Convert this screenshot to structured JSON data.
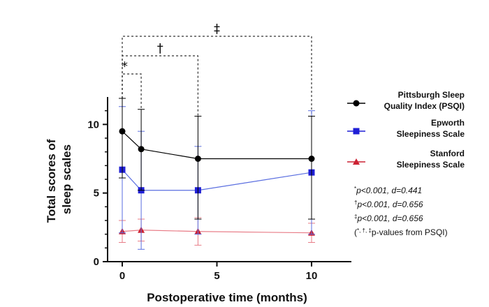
{
  "chart_data": {
    "type": "line",
    "xlabel": "Postoperative time (months)",
    "ylabel_lines": [
      "Total scores of",
      "sleep scales"
    ],
    "x": [
      0,
      1,
      4,
      10
    ],
    "xlim": [
      -0.8,
      11.8
    ],
    "ylim": [
      0,
      12
    ],
    "x_ticks": [
      0,
      5,
      10
    ],
    "y_ticks": [
      0,
      5,
      10
    ],
    "grid": false,
    "legend_position": "right",
    "series": [
      {
        "name_lines": [
          "Pittsburgh Sleep",
          "Quality Index (PSQI)"
        ],
        "color": "#000000",
        "line_color": "#000000",
        "marker": "circle",
        "values": [
          9.5,
          8.2,
          7.5,
          7.5
        ],
        "err_low": [
          6.1,
          5.2,
          3.1,
          3.1
        ],
        "err_high": [
          11.9,
          11.1,
          10.6,
          10.6
        ]
      },
      {
        "name_lines": [
          "Epworth",
          "Sleepiness Scale"
        ],
        "color": "#1f1fd6",
        "line_color": "#5a6ee0",
        "marker": "square",
        "values": [
          6.7,
          5.2,
          5.2,
          6.5
        ],
        "err_low": [
          2.1,
          0.9,
          2.0,
          2.0
        ],
        "err_high": [
          11.3,
          9.5,
          8.4,
          11.0
        ]
      },
      {
        "name_lines": [
          "Stanford",
          "Sleepiness Scale"
        ],
        "color": "#cc2233",
        "line_color": "#e87b86",
        "marker": "triangle",
        "values": [
          2.2,
          2.3,
          2.2,
          2.1
        ],
        "err_low": [
          1.4,
          1.5,
          1.2,
          1.4
        ],
        "err_high": [
          3.0,
          3.1,
          3.2,
          2.8
        ]
      }
    ],
    "significance": [
      {
        "symbol": "*",
        "x1": 0,
        "x2": 1,
        "y": 13.5
      },
      {
        "symbol": "†",
        "x1": 0,
        "x2": 4,
        "y": 15.0
      },
      {
        "symbol": "‡",
        "x1": 0,
        "x2": 10,
        "y": 16.5
      }
    ],
    "annotations": [
      {
        "sup": "*",
        "text": "p<0.001, d=0.441"
      },
      {
        "sup": "†",
        "text": "p<0.001, d=0.656"
      },
      {
        "sup": "‡",
        "text": "p<0.001, d=0.656"
      }
    ],
    "footnote": {
      "open": "(",
      "sup": "*, †, ‡",
      "text": "p-values from PSQI)"
    }
  }
}
